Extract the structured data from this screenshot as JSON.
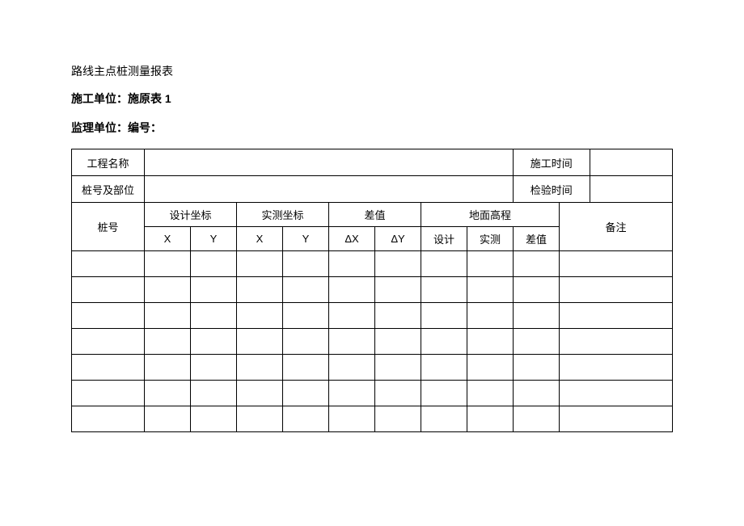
{
  "title": "路线主点桩测量报表",
  "info1_label": "施工单位：",
  "info1_value": "施原表 1",
  "info2_label": "监理单位：",
  "info2_field": "编号：",
  "table": {
    "row1_label": "工程名称",
    "row1_rlabel": "施工时间",
    "row2_label": "桩号及部位",
    "row2_rlabel": "检验时间",
    "col_pile": "桩号",
    "grp_design": "设计坐标",
    "grp_measured": "实测坐标",
    "grp_diff": "差值",
    "grp_elev": "地面高程",
    "col_remark": "备注",
    "sub_x1": "X",
    "sub_y1": "Y",
    "sub_x2": "X",
    "sub_y2": "Y",
    "sub_dx": "ΔX",
    "sub_dy": "ΔY",
    "sub_design": "设计",
    "sub_actual": "实测",
    "sub_diff": "差值"
  },
  "data_row_count": 7,
  "colors": {
    "border": "#000000",
    "background": "#ffffff",
    "text": "#000000"
  }
}
